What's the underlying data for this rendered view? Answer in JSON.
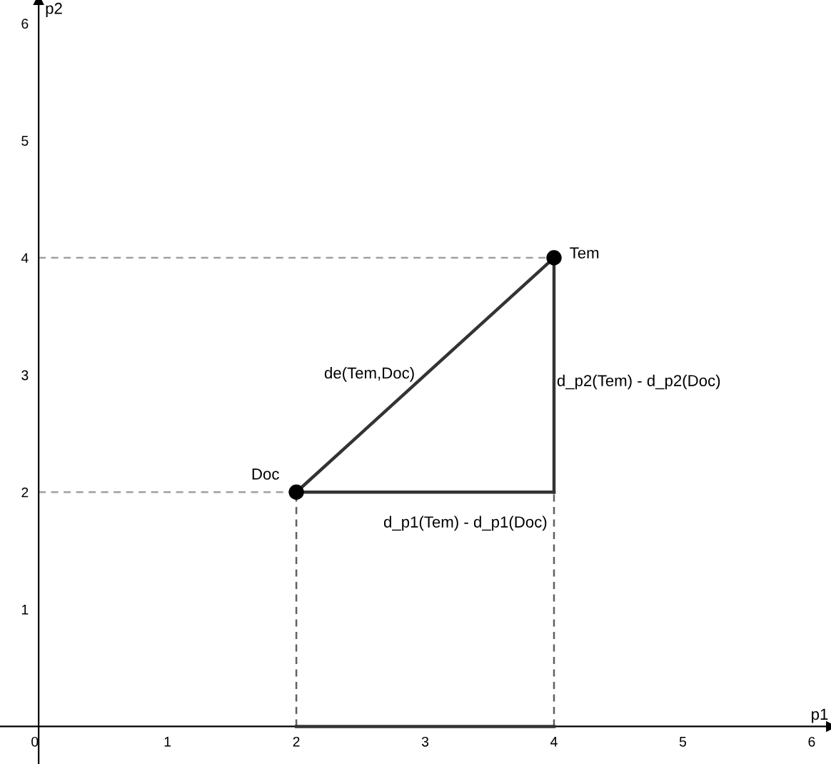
{
  "chart_data": {
    "type": "line",
    "xlabel": "p1",
    "ylabel": "p2",
    "xlim": [
      -0.3,
      6.15
    ],
    "ylim": [
      -0.32,
      6.2
    ],
    "xticks": [
      0,
      1,
      2,
      3,
      4,
      5,
      6
    ],
    "yticks": [
      1,
      2,
      3,
      4,
      5,
      6
    ],
    "grid": false,
    "legend": false,
    "series": [
      {
        "color": "#a0a0a0",
        "line_style": "dashed",
        "marker": "none",
        "x": [
          0,
          4
        ],
        "values": [
          4,
          4
        ]
      },
      {
        "color": "#a0a0a0",
        "line_style": "dashed",
        "marker": "none",
        "x": [
          0,
          2
        ],
        "values": [
          2,
          2
        ]
      },
      {
        "color": "#606060",
        "line_style": "dashed",
        "marker": "none",
        "x": [
          2,
          2
        ],
        "values": [
          0,
          2
        ]
      },
      {
        "color": "#606060",
        "line_style": "dashed",
        "marker": "none",
        "x": [
          4,
          4
        ],
        "values": [
          0,
          2
        ]
      },
      {
        "color": "#333333",
        "line_style": "solid",
        "marker": "none",
        "x": [
          2,
          4
        ],
        "values": [
          2,
          4
        ]
      },
      {
        "color": "#333333",
        "line_style": "solid",
        "marker": "none",
        "x": [
          2,
          4
        ],
        "values": [
          2,
          2
        ]
      },
      {
        "color": "#333333",
        "line_style": "solid",
        "marker": "none",
        "x": [
          4,
          4
        ],
        "values": [
          2,
          4
        ]
      },
      {
        "color": "#333333",
        "line_style": "solid",
        "marker": "none",
        "x": [
          2,
          4
        ],
        "values": [
          0,
          0
        ]
      },
      {
        "type": "scatter",
        "color": "#000000",
        "marker": "circle",
        "x": [
          2,
          4
        ],
        "values": [
          2,
          4
        ]
      }
    ],
    "annotations": [
      {
        "text": "Doc",
        "x": 2,
        "y": 2
      },
      {
        "text": "Tem",
        "x": 4,
        "y": 4
      },
      "de(Tem,Doc)",
      "d_p1(Tem) - d_p1(Doc)",
      "d_p2(Tem) - d_p2(Doc)"
    ]
  }
}
